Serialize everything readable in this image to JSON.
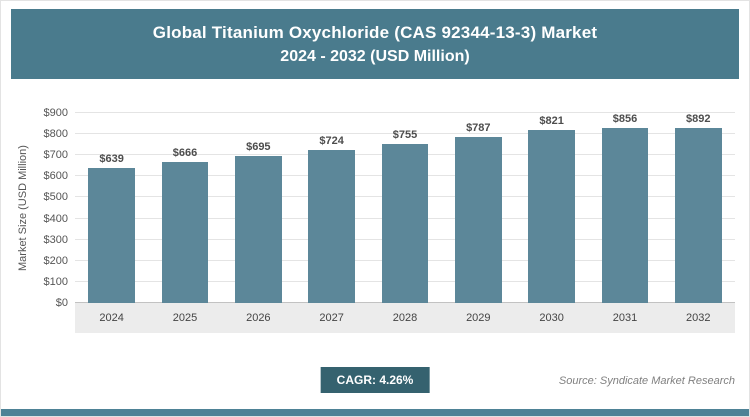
{
  "header": {
    "title_line1": "Global Titanium Oxychloride (CAS 92344-13-3) Market",
    "title_line2": "2024 - 2032 (USD Million)"
  },
  "chart_data": {
    "type": "bar",
    "title": "Global Titanium Oxychloride (CAS 92344-13-3) Market 2024 - 2032 (USD Million)",
    "ylabel": "Market Size (USD Million)",
    "xlabel": "",
    "categories": [
      "2024",
      "2025",
      "2026",
      "2027",
      "2028",
      "2029",
      "2030",
      "2031",
      "2032"
    ],
    "values": [
      639,
      666,
      695,
      724,
      755,
      787,
      821,
      856,
      892
    ],
    "bar_labels": [
      "$639",
      "$666",
      "$695",
      "$724",
      "$755",
      "$787",
      "$821",
      "$856",
      "$892"
    ],
    "ylim": [
      0,
      900
    ],
    "ytick_values": [
      0,
      100,
      200,
      300,
      400,
      500,
      600,
      700,
      800,
      900
    ],
    "ytick_labels": [
      "$0",
      "$100",
      "$200",
      "$300",
      "$400",
      "$500",
      "$600",
      "$700",
      "$800",
      "$900"
    ],
    "grid": true,
    "legend": "none",
    "bar_color": "#5C8799"
  },
  "footer": {
    "cagr_label": "CAGR: 4.26%",
    "source": "Source: Syndicate Market Research"
  },
  "colors": {
    "header_bg": "#4A7B8D",
    "badge_bg": "#35626F",
    "accent_bar": "#4E8296",
    "bar": "#5C8799"
  }
}
